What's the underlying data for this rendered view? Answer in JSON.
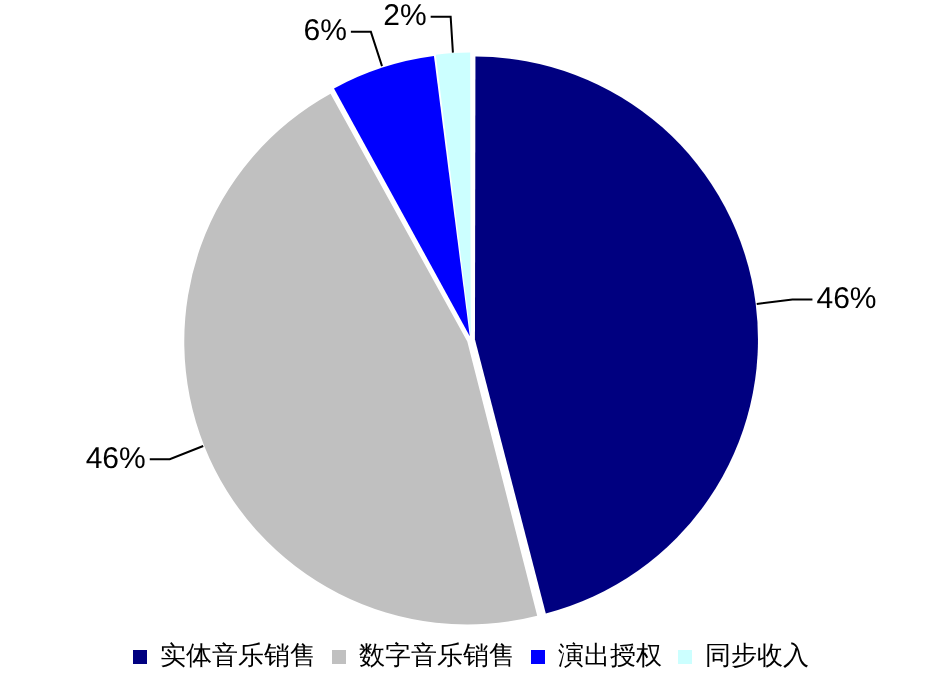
{
  "chart_data": {
    "type": "pie",
    "categories": [
      "实体音乐销售",
      "数字音乐销售",
      "演出授权",
      "同步收入"
    ],
    "values": [
      46,
      46,
      6,
      2
    ],
    "colors": [
      "#000080",
      "#c0c0c0",
      "#0000ff",
      "#ccffff"
    ],
    "value_labels": [
      "46%",
      "46%",
      "6%",
      "2%"
    ],
    "legend": "bottom"
  }
}
